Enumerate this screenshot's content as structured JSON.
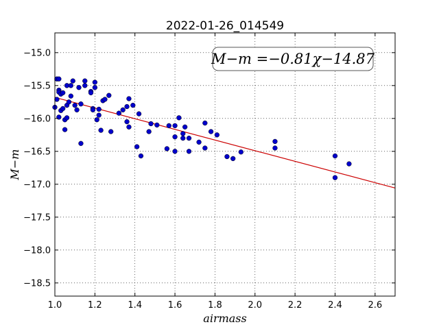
{
  "chart_data": {
    "type": "scatter",
    "title": "2022-01-26_014549",
    "xlabel": "airmass",
    "ylabel": "M−m",
    "xlim": [
      1.0,
      2.7
    ],
    "ylim": [
      -18.7,
      -14.7
    ],
    "y_inverted": true,
    "grid": true,
    "xticks": [
      1.0,
      1.2,
      1.4,
      1.6,
      1.8,
      2.0,
      2.2,
      2.4,
      2.6
    ],
    "xtick_labels": [
      "1.0",
      "1.2",
      "1.4",
      "1.6",
      "1.8",
      "2.0",
      "2.2",
      "2.4",
      "2.6"
    ],
    "yticks": [
      -15.0,
      -15.5,
      -16.0,
      -16.5,
      -17.0,
      -17.5,
      -18.0,
      -18.5
    ],
    "ytick_labels": [
      "−15.0",
      "−15.5",
      "−16.0",
      "−16.5",
      "−17.0",
      "−17.5",
      "−18.0",
      "−18.5"
    ],
    "annotation": "M−m =−0.81χ−14.87",
    "fit": {
      "slope": -0.81,
      "intercept": -14.87,
      "color": "#cc0000"
    },
    "marker_color": "#0000cc",
    "points": [
      [
        1.0,
        -15.83
      ],
      [
        1.01,
        -15.71
      ],
      [
        1.01,
        -15.4
      ],
      [
        1.02,
        -15.4
      ],
      [
        1.02,
        -15.57
      ],
      [
        1.02,
        -15.6
      ],
      [
        1.03,
        -15.63
      ],
      [
        1.02,
        -15.98
      ],
      [
        1.03,
        -15.88
      ],
      [
        1.04,
        -15.85
      ],
      [
        1.04,
        -15.61
      ],
      [
        1.05,
        -16.17
      ],
      [
        1.05,
        -16.02
      ],
      [
        1.06,
        -15.5
      ],
      [
        1.06,
        -15.99
      ],
      [
        1.06,
        -15.8
      ],
      [
        1.07,
        -15.75
      ],
      [
        1.08,
        -15.5
      ],
      [
        1.08,
        -15.66
      ],
      [
        1.09,
        -15.43
      ],
      [
        1.1,
        -15.8
      ],
      [
        1.11,
        -15.87
      ],
      [
        1.12,
        -15.53
      ],
      [
        1.13,
        -15.78
      ],
      [
        1.13,
        -16.38
      ],
      [
        1.15,
        -15.43
      ],
      [
        1.15,
        -15.5
      ],
      [
        1.18,
        -15.59
      ],
      [
        1.18,
        -15.61
      ],
      [
        1.19,
        -15.85
      ],
      [
        1.19,
        -15.87
      ],
      [
        1.2,
        -15.45
      ],
      [
        1.2,
        -15.53
      ],
      [
        1.21,
        -16.02
      ],
      [
        1.22,
        -15.86
      ],
      [
        1.22,
        -15.95
      ],
      [
        1.23,
        -16.18
      ],
      [
        1.24,
        -15.73
      ],
      [
        1.25,
        -15.71
      ],
      [
        1.27,
        -15.65
      ],
      [
        1.28,
        -16.2
      ],
      [
        1.32,
        -15.92
      ],
      [
        1.34,
        -15.87
      ],
      [
        1.36,
        -16.05
      ],
      [
        1.36,
        -15.82
      ],
      [
        1.37,
        -15.7
      ],
      [
        1.37,
        -16.13
      ],
      [
        1.39,
        -15.8
      ],
      [
        1.41,
        -16.43
      ],
      [
        1.42,
        -15.93
      ],
      [
        1.43,
        -16.57
      ],
      [
        1.47,
        -16.2
      ],
      [
        1.48,
        -16.08
      ],
      [
        1.51,
        -16.1
      ],
      [
        1.56,
        -16.46
      ],
      [
        1.57,
        -16.11
      ],
      [
        1.6,
        -16.11
      ],
      [
        1.6,
        -16.28
      ],
      [
        1.6,
        -16.5
      ],
      [
        1.62,
        -15.99
      ],
      [
        1.64,
        -16.3
      ],
      [
        1.64,
        -16.23
      ],
      [
        1.65,
        -16.13
      ],
      [
        1.67,
        -16.3
      ],
      [
        1.67,
        -16.5
      ],
      [
        1.72,
        -16.36
      ],
      [
        1.75,
        -16.07
      ],
      [
        1.75,
        -16.45
      ],
      [
        1.78,
        -16.2
      ],
      [
        1.81,
        -16.25
      ],
      [
        1.86,
        -16.58
      ],
      [
        1.89,
        -16.61
      ],
      [
        1.93,
        -16.51
      ],
      [
        2.1,
        -16.35
      ],
      [
        2.1,
        -16.45
      ],
      [
        2.4,
        -16.57
      ],
      [
        2.4,
        -16.9
      ],
      [
        2.47,
        -16.69
      ]
    ]
  }
}
